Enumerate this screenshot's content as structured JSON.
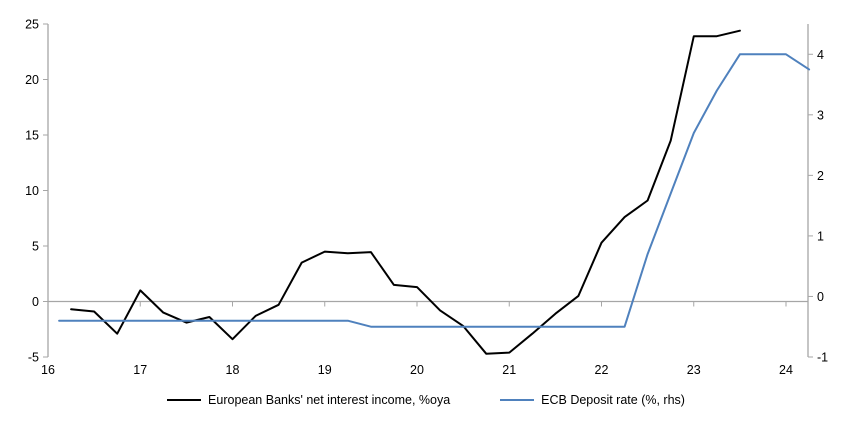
{
  "figure": {
    "background_color": "#ffffff",
    "axis_color": "#a6a6a6",
    "text_color": "#000000"
  },
  "chart_data": {
    "type": "line",
    "title": "",
    "x_axis": {
      "tick_labels": [
        "16",
        "17",
        "18",
        "19",
        "20",
        "21",
        "22",
        "23",
        "24"
      ],
      "ticks": [
        16,
        17,
        18,
        19,
        20,
        21,
        22,
        23,
        24
      ],
      "range": [
        16,
        24.25
      ],
      "note": "years, quarterly data points"
    },
    "left_y_axis": {
      "tick_labels": [
        "-5",
        "0",
        "5",
        "10",
        "15",
        "20",
        "25"
      ],
      "ticks": [
        -5,
        0,
        5,
        10,
        15,
        20,
        25
      ],
      "range": [
        -5,
        25
      ]
    },
    "right_y_axis": {
      "tick_labels": [
        "-1",
        "0",
        "1",
        "2",
        "3",
        "4"
      ],
      "ticks": [
        -1,
        0,
        1,
        2,
        3,
        4
      ],
      "range": [
        -1,
        4.5
      ]
    },
    "grid": "zero-line-only",
    "legend_position": "bottom",
    "series": [
      {
        "name": "European Banks' net interest income, %oya",
        "color": "#000000",
        "axis": "left",
        "x": [
          16.25,
          16.5,
          16.75,
          17.0,
          17.25,
          17.5,
          17.75,
          18.0,
          18.25,
          18.5,
          18.75,
          19.0,
          19.25,
          19.5,
          19.75,
          20.0,
          20.25,
          20.5,
          20.75,
          21.0,
          21.25,
          21.5,
          21.75,
          22.0,
          22.25,
          22.5,
          22.75,
          23.0,
          23.25,
          23.5
        ],
        "values": [
          -0.7,
          -0.9,
          -2.9,
          1.0,
          -1.0,
          -1.9,
          -1.4,
          -3.4,
          -1.3,
          -0.3,
          3.5,
          4.5,
          4.35,
          4.45,
          1.5,
          1.3,
          -0.8,
          -2.2,
          -4.7,
          -4.6,
          -2.9,
          -1.1,
          0.5,
          5.3,
          7.6,
          9.1,
          14.5,
          23.9,
          23.9,
          24.4
        ]
      },
      {
        "name": "ECB Deposit rate (%, rhs)",
        "color": "#4f81bd",
        "axis": "right",
        "x": [
          16.12,
          16.25,
          16.5,
          16.75,
          17.0,
          17.25,
          17.5,
          17.75,
          18.0,
          18.25,
          18.5,
          18.75,
          19.0,
          19.25,
          19.5,
          19.75,
          20.0,
          20.25,
          20.5,
          20.75,
          21.0,
          21.25,
          21.5,
          21.75,
          22.0,
          22.25,
          22.5,
          22.75,
          23.0,
          23.25,
          23.5,
          23.75,
          24.0,
          24.25
        ],
        "values": [
          -0.4,
          -0.4,
          -0.4,
          -0.4,
          -0.4,
          -0.4,
          -0.4,
          -0.4,
          -0.4,
          -0.4,
          -0.4,
          -0.4,
          -0.4,
          -0.4,
          -0.5,
          -0.5,
          -0.5,
          -0.5,
          -0.5,
          -0.5,
          -0.5,
          -0.5,
          -0.5,
          -0.5,
          -0.5,
          -0.5,
          0.7,
          1.7,
          2.7,
          3.4,
          4.0,
          4.0,
          4.0,
          3.75
        ]
      }
    ]
  },
  "legend": {
    "items": [
      {
        "label": "European Banks' net interest income, %oya",
        "color": "#000000"
      },
      {
        "label": "ECB Deposit rate (%, rhs)",
        "color": "#4f81bd"
      }
    ]
  }
}
